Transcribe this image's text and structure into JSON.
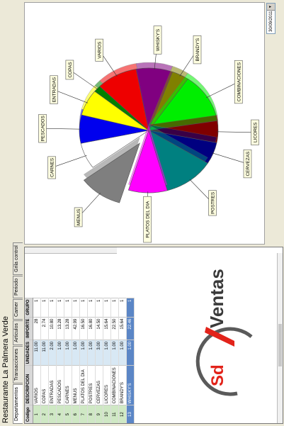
{
  "window": {
    "title": "Restaurante La Palmera Verde"
  },
  "tabs": [
    {
      "label": "Departamentos"
    },
    {
      "label": "Transacciones"
    },
    {
      "label": "Articulos"
    },
    {
      "label": "Camer"
    },
    {
      "label": "Periodo"
    },
    {
      "label": "Grila control"
    }
  ],
  "date_field": {
    "value": "30/09/2011"
  },
  "table": {
    "columns": [
      "Codigo",
      "DESCRIPCION",
      "UNIDADES",
      "IMPORTE",
      "GRUPO"
    ],
    "rows": [
      [
        "1",
        "VARIOS",
        "11.00",
        "28",
        "1"
      ],
      [
        "2",
        "COPAS",
        "11.00",
        "2.74",
        "1"
      ],
      [
        "3",
        "ENTRADAS",
        "2.00",
        "10.80",
        "1"
      ],
      [
        "4",
        "PESCADOS",
        "1.00",
        "13.28",
        "1"
      ],
      [
        "5",
        "CARNES",
        "1.00",
        "13.28",
        "1"
      ],
      [
        "6",
        "MENUS",
        "1.00",
        "42.99",
        "1"
      ],
      [
        "7",
        "PLATOS DEL DIA",
        "1.00",
        "16.50",
        "1"
      ],
      [
        "8",
        "POSTRES",
        "1.00",
        "16.80",
        "1"
      ],
      [
        "9",
        "CERVEZAS",
        "3.00",
        "14.50",
        "1"
      ],
      [
        "10",
        "LICORES",
        "1.00",
        "15.64",
        "1"
      ],
      [
        "11",
        "COMBINACIONES",
        "1.00",
        "22.50",
        "1"
      ],
      [
        "12",
        "BRANDY'S",
        "1.00",
        "15.64",
        "1"
      ],
      [
        "13",
        "WHISKY'S",
        "1.00",
        "22.46",
        "1"
      ]
    ]
  },
  "logo": {
    "mark": "Sd",
    "text": "Ventas"
  },
  "colors": {
    "logo_red": "#e2231a",
    "selected_row": "#5b86c6",
    "code_column": "#cfe8c4"
  },
  "chart_data": {
    "type": "pie",
    "title": "",
    "exploded": "MENUS",
    "slices": [
      {
        "name": "MENUS",
        "value": 9.0,
        "color": "#7f7f7f"
      },
      {
        "name": "CARNES",
        "value": 6.0,
        "color": "#ffffff"
      },
      {
        "name": "PESCADOS",
        "value": 6.5,
        "color": "#0000ee"
      },
      {
        "name": "ENTRADAS",
        "value": 6.0,
        "color": "#ffff00"
      },
      {
        "name": "COPAS",
        "value": 1.5,
        "color": "#008000"
      },
      {
        "name": "VARIOS",
        "value": 8.5,
        "color": "#ee0000"
      },
      {
        "name": "WHISKY'S",
        "value": 7.5,
        "color": "#800080"
      },
      {
        "name": "BRANDY'S",
        "value": 3.5,
        "color": "#808000"
      },
      {
        "name": "COMBINACIONES",
        "value": 11.5,
        "color": "#00ee00"
      },
      {
        "name": "LICORES",
        "value": 5.0,
        "color": "#800000"
      },
      {
        "name": "CERVEZAS",
        "value": 5.0,
        "color": "#000080"
      },
      {
        "name": "POSTRES",
        "value": 10.5,
        "color": "#008080"
      },
      {
        "name": "PLATOS DEL DIA",
        "value": 8.0,
        "color": "#ff00ff"
      }
    ]
  }
}
